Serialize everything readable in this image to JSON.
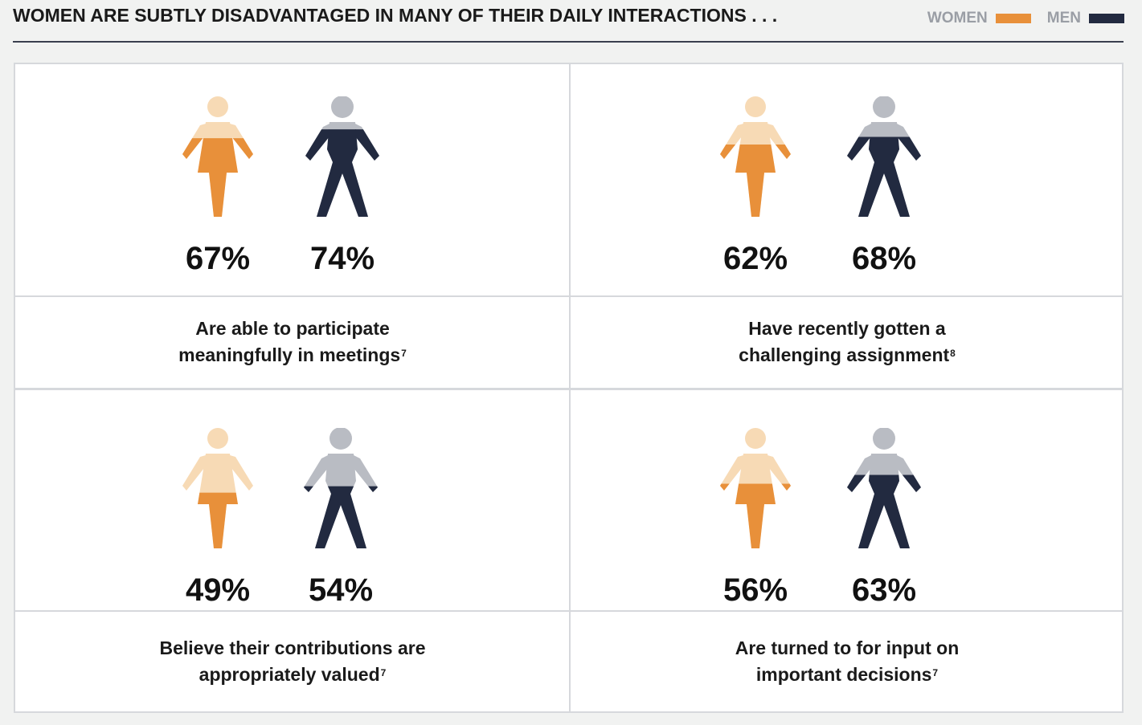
{
  "header": {
    "title": "WOMEN ARE SUBTLY DISADVANTAGED IN MANY OF THEIR DAILY INTERACTIONS . . .",
    "legend": [
      {
        "label": "WOMEN",
        "color": "#e8903a"
      },
      {
        "label": "MEN",
        "color": "#222a40"
      }
    ]
  },
  "colors": {
    "women_fill": "#e8903a",
    "women_light": "#f7dab5",
    "men_fill": "#222a40",
    "men_light": "#b9bcc3"
  },
  "chart_data": [
    {
      "type": "pictograph",
      "caption_lines": [
        "Are able to participate",
        "meaningfully in meetings"
      ],
      "footnote": "7",
      "series": [
        {
          "name": "WOMEN",
          "value": 67,
          "label": "67%"
        },
        {
          "name": "MEN",
          "value": 74,
          "label": "74%"
        }
      ]
    },
    {
      "type": "pictograph",
      "caption_lines": [
        "Have recently gotten a",
        "challenging assignment"
      ],
      "footnote": "8",
      "series": [
        {
          "name": "WOMEN",
          "value": 62,
          "label": "62%"
        },
        {
          "name": "MEN",
          "value": 68,
          "label": "68%"
        }
      ]
    },
    {
      "type": "pictograph",
      "caption_lines": [
        "Believe their contributions are",
        "appropriately valued"
      ],
      "footnote": "7",
      "series": [
        {
          "name": "WOMEN",
          "value": 49,
          "label": "49%"
        },
        {
          "name": "MEN",
          "value": 54,
          "label": "54%"
        }
      ]
    },
    {
      "type": "pictograph",
      "caption_lines": [
        "Are turned to for input on",
        "important decisions"
      ],
      "footnote": "7",
      "series": [
        {
          "name": "WOMEN",
          "value": 56,
          "label": "56%"
        },
        {
          "name": "MEN",
          "value": 63,
          "label": "63%"
        }
      ]
    }
  ]
}
